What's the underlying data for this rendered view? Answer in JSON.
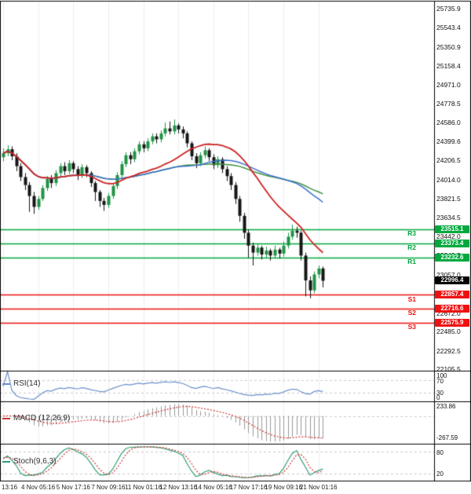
{
  "colors": {
    "up_candle": "#1f9445",
    "down_candle": "#161616",
    "ma_red": "#cf2020",
    "ma_blue": "#3a6fca",
    "ma_green": "#3f9142",
    "resistance_green": "#00a83e",
    "support_red": "#ee1111",
    "current_price_bg": "#000000",
    "rsi_blue": "#6b8fc9",
    "macd_signal_red": "#cf3333",
    "macd_hist_gray": "#999999",
    "stoch_k_green": "#2f9e77",
    "stoch_d_red": "#cf3333",
    "grid": "#ececec"
  },
  "price_axis": {
    "ticks": [
      "25735.9",
      "25543.4",
      "25350.9",
      "25158.4",
      "24971.0",
      "24778.5",
      "24586.0",
      "24399.6",
      "24206.5",
      "24014.0",
      "23821.5",
      "23634.5",
      "23442.0",
      "23249.5",
      "23057.0",
      "22864.5",
      "22672.0",
      "22485.0",
      "22292.5",
      "22105.5"
    ]
  },
  "time_axis": {
    "labels": [
      "13:16",
      "4 Nov 05:16",
      "5 Nov 17:16",
      "7 Nov 09:16",
      "11 Nov 01:16",
      "12 Nov 13:16",
      "14 Nov 05:16",
      "17 Nov 17:16",
      "19 Nov 09:16",
      "21 Nov 01:16"
    ]
  },
  "levels": {
    "resistances": [
      {
        "name": "R3",
        "value": 23515.1,
        "label": "23515.1"
      },
      {
        "name": "R2",
        "value": 23373.4,
        "label": "23373.4"
      },
      {
        "name": "R1",
        "value": 23232.6,
        "label": "23232.6"
      }
    ],
    "supports": [
      {
        "name": "S1",
        "value": 22857.4,
        "label": "22857.4"
      },
      {
        "name": "S2",
        "value": 22716.6,
        "label": "22716.6"
      },
      {
        "name": "S3",
        "value": 22575.9,
        "label": "22575.9"
      }
    ],
    "current": {
      "value": 22996.4,
      "label": "22996.4"
    }
  },
  "panels": {
    "rsi": {
      "label": "RSI(14)",
      "ticks": [
        "100",
        "70",
        "30",
        "0"
      ],
      "upper": 70,
      "lower": 30
    },
    "macd": {
      "label": "MACD (12,26,9)",
      "ticks": [
        "233.86",
        "-267.59"
      ]
    },
    "stoch": {
      "label": "Stoch(9,6,3)",
      "ticks": [
        "80",
        "20"
      ],
      "upper": 80,
      "lower": 20
    }
  },
  "chart_data": {
    "type": "candlestick",
    "ylim": [
      22091,
      25807
    ],
    "yticks": [
      25735.9,
      25543.4,
      25350.9,
      25158.4,
      24971.0,
      24778.5,
      24586.0,
      24399.6,
      24206.5,
      24014.0,
      23821.5,
      23634.5,
      23442.0,
      23249.5,
      23057.0,
      22864.5,
      22672.0,
      22485.0,
      22292.5,
      22105.5
    ],
    "xticklabels": [
      "13:16",
      "4 Nov 05:16",
      "5 Nov 17:16",
      "7 Nov 09:16",
      "11 Nov 01:16",
      "12 Nov 13:16",
      "14 Nov 05:16",
      "17 Nov 17:16",
      "19 Nov 09:16",
      "21 Nov 01:16"
    ],
    "ohlc": [
      [
        24240,
        24330,
        24200,
        24280
      ],
      [
        24280,
        24360,
        24250,
        24320
      ],
      [
        24320,
        24350,
        24210,
        24250
      ],
      [
        24250,
        24280,
        24100,
        24150
      ],
      [
        24150,
        24180,
        24000,
        24040
      ],
      [
        24040,
        24080,
        23910,
        23960
      ],
      [
        23960,
        23990,
        23690,
        23850
      ],
      [
        23850,
        23890,
        23670,
        23740
      ],
      [
        23740,
        23850,
        23710,
        23820
      ],
      [
        23820,
        23960,
        23800,
        23930
      ],
      [
        23930,
        24050,
        23900,
        24020
      ],
      [
        24020,
        24060,
        23930,
        23980
      ],
      [
        23980,
        24110,
        23950,
        24080
      ],
      [
        24080,
        24180,
        24050,
        24150
      ],
      [
        24150,
        24190,
        24060,
        24100
      ],
      [
        24100,
        24210,
        24070,
        24180
      ],
      [
        24180,
        24200,
        24080,
        24120
      ],
      [
        24120,
        24150,
        24010,
        24060
      ],
      [
        24060,
        24170,
        24030,
        24140
      ],
      [
        24140,
        24160,
        24040,
        24080
      ],
      [
        24080,
        24100,
        23940,
        23980
      ],
      [
        23980,
        24000,
        23800,
        23890
      ],
      [
        23890,
        23910,
        23740,
        23800
      ],
      [
        23800,
        23830,
        23700,
        23760
      ],
      [
        23760,
        23880,
        23730,
        23850
      ],
      [
        23850,
        23980,
        23820,
        23950
      ],
      [
        23950,
        24090,
        23920,
        24060
      ],
      [
        24060,
        24200,
        24030,
        24170
      ],
      [
        24170,
        24290,
        24140,
        24260
      ],
      [
        24260,
        24290,
        24170,
        24220
      ],
      [
        24220,
        24330,
        24190,
        24300
      ],
      [
        24300,
        24400,
        24270,
        24370
      ],
      [
        24370,
        24400,
        24290,
        24330
      ],
      [
        24330,
        24430,
        24300,
        24400
      ],
      [
        24400,
        24480,
        24370,
        24450
      ],
      [
        24450,
        24480,
        24380,
        24420
      ],
      [
        24420,
        24510,
        24390,
        24480
      ],
      [
        24480,
        24590,
        24450,
        24530
      ],
      [
        24530,
        24600,
        24470,
        24500
      ],
      [
        24500,
        24620,
        24470,
        24560
      ],
      [
        24560,
        24580,
        24480,
        24520
      ],
      [
        24520,
        24550,
        24430,
        24480
      ],
      [
        24480,
        24500,
        24340,
        24380
      ],
      [
        24380,
        24400,
        24210,
        24250
      ],
      [
        24250,
        24280,
        24130,
        24180
      ],
      [
        24180,
        24290,
        24150,
        24260
      ],
      [
        24260,
        24350,
        24230,
        24310
      ],
      [
        24310,
        24330,
        24200,
        24240
      ],
      [
        24240,
        24270,
        24120,
        24160
      ],
      [
        24160,
        24250,
        24130,
        24220
      ],
      [
        24220,
        24240,
        24080,
        24120
      ],
      [
        24120,
        24150,
        24000,
        24050
      ],
      [
        24050,
        24080,
        23910,
        23960
      ],
      [
        23960,
        23990,
        23770,
        23820
      ],
      [
        23820,
        23850,
        23590,
        23650
      ],
      [
        23650,
        23680,
        23420,
        23480
      ],
      [
        23480,
        23510,
        23230,
        23350
      ],
      [
        23350,
        23380,
        23150,
        23280
      ],
      [
        23280,
        23370,
        23250,
        23330
      ],
      [
        23330,
        23350,
        23210,
        23260
      ],
      [
        23260,
        23340,
        23230,
        23300
      ],
      [
        23300,
        23320,
        23200,
        23250
      ],
      [
        23250,
        23350,
        23220,
        23310
      ],
      [
        23310,
        23330,
        23220,
        23270
      ],
      [
        23270,
        23390,
        23240,
        23350
      ],
      [
        23350,
        23480,
        23320,
        23440
      ],
      [
        23440,
        23560,
        23410,
        23500
      ],
      [
        23500,
        23540,
        23430,
        23480
      ],
      [
        23480,
        23500,
        23200,
        23250
      ],
      [
        23250,
        23280,
        22840,
        23000
      ],
      [
        23000,
        23040,
        22820,
        22900
      ],
      [
        22900,
        23090,
        22870,
        23060
      ],
      [
        23060,
        23150,
        23020,
        23120
      ],
      [
        23120,
        23140,
        22930,
        22996.4
      ]
    ],
    "overlays": {
      "moving_averages": [
        {
          "name": "ma-green",
          "period": 55,
          "color": "#3f9142"
        },
        {
          "name": "ma-blue",
          "period": 40,
          "color": "#3a6fca"
        },
        {
          "name": "ma-red",
          "period": 20,
          "color": "#cf2020"
        }
      ],
      "pivot_levels": {
        "R3": 23515.1,
        "R2": 23373.4,
        "R1": 23232.6,
        "current": 22996.4,
        "S1": 22857.4,
        "S2": 22716.6,
        "S3": 22575.9
      }
    },
    "subpanels": [
      {
        "type": "line",
        "name": "RSI(14)",
        "range": [
          0,
          100
        ],
        "guides": [
          70,
          30
        ]
      },
      {
        "type": "macd",
        "name": "MACD (12,26,9)",
        "axis_labels": [
          233.86,
          -267.59
        ]
      },
      {
        "type": "stoch",
        "name": "Stoch(9,6,3)",
        "range": [
          0,
          100
        ],
        "guides": [
          80,
          20
        ]
      }
    ]
  }
}
